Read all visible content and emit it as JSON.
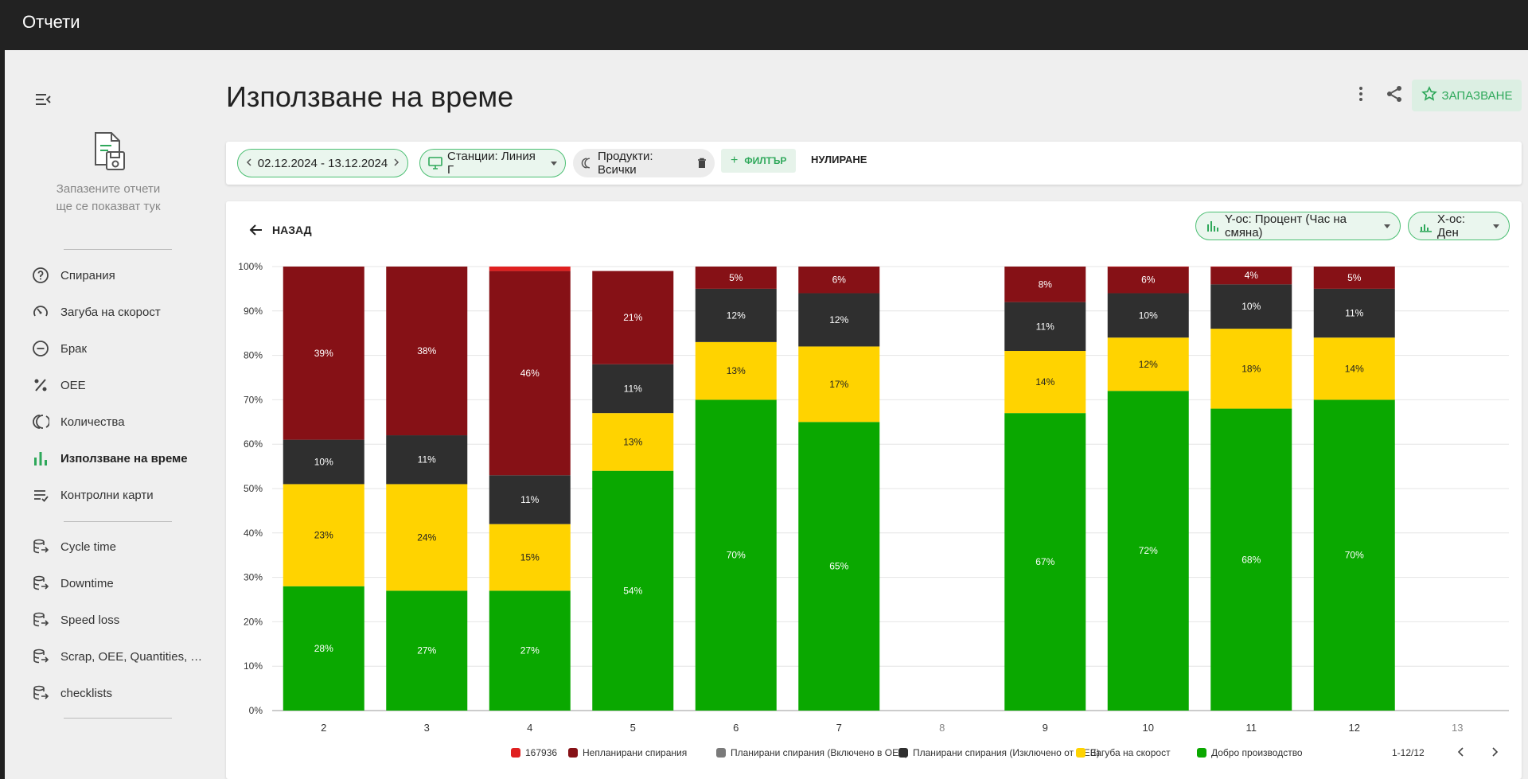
{
  "app": {
    "title": "Отчети"
  },
  "sidebar": {
    "saved_text_line1": "Запазените отчети",
    "saved_text_line2": "ще се показват тук",
    "items": [
      {
        "label": "Спирания",
        "icon": "question-circle-icon"
      },
      {
        "label": "Загуба на скорост",
        "icon": "speed-gauge-icon"
      },
      {
        "label": "Брак",
        "icon": "minus-circle-icon"
      },
      {
        "label": "OEE",
        "icon": "percent-icon"
      },
      {
        "label": "Количества",
        "icon": "quantity-rings-icon"
      },
      {
        "label": "Използване на време",
        "icon": "bar-chart-icon",
        "active": true
      },
      {
        "label": "Контролни карти",
        "icon": "checklist-icon"
      },
      {
        "label": "Cycle time",
        "icon": "database-export-icon"
      },
      {
        "label": "Downtime",
        "icon": "database-export-icon"
      },
      {
        "label": "Speed loss",
        "icon": "database-export-icon"
      },
      {
        "label": "Scrap, OEE, Quantities, Ti...",
        "icon": "database-export-icon"
      },
      {
        "label": "checklists",
        "icon": "database-export-icon"
      }
    ]
  },
  "header": {
    "title": "Използване на време",
    "save_label": "ЗАПАЗВАНЕ"
  },
  "filters": {
    "date_range": "02.12.2024 - 13.12.2024",
    "stations": "Станции: Линия Г",
    "products": "Продукти: Всички",
    "add_filter": "ФИЛТЪР",
    "reset": "НУЛИРАНЕ"
  },
  "panel": {
    "back_label": "НАЗАД",
    "y_axis_chip": "Y-ос: Процент (Час на смяна)",
    "x_axis_chip": "X-ос: Ден",
    "pager": "1-12/12"
  },
  "colors": {
    "accent": "#2ea85a",
    "s167936": "#e02020",
    "unplanned": "#861116",
    "planned_in": "#7a7a7a",
    "planned_out": "#2f2f2f",
    "speed": "#ffd300",
    "good": "#0aa800"
  },
  "chart_data": {
    "type": "bar",
    "stacked": true,
    "categories": [
      "2",
      "3",
      "4",
      "5",
      "6",
      "7",
      "8",
      "9",
      "10",
      "11",
      "12",
      "13"
    ],
    "ylim": [
      0,
      100
    ],
    "yticks": [
      "0%",
      "10%",
      "20%",
      "30%",
      "40%",
      "50%",
      "60%",
      "70%",
      "80%",
      "90%",
      "100%"
    ],
    "grid": true,
    "legend_position": "bottom",
    "series": [
      {
        "name": "Добро производство",
        "color": "#0aa800",
        "values": [
          28,
          27,
          27,
          54,
          70,
          65,
          null,
          67,
          72,
          68,
          70,
          null
        ],
        "labels": [
          "28%",
          "27%",
          "27%",
          "54%",
          "70%",
          "65%",
          "",
          "67%",
          "72%",
          "68%",
          "70%",
          ""
        ]
      },
      {
        "name": "Загуба на скорост",
        "color": "#ffd300",
        "values": [
          23,
          24,
          15,
          13,
          13,
          17,
          null,
          14,
          12,
          18,
          14,
          null
        ],
        "labels": [
          "23%",
          "24%",
          "15%",
          "13%",
          "13%",
          "17%",
          "",
          "14%",
          "12%",
          "18%",
          "14%",
          ""
        ]
      },
      {
        "name": "Планирани спирания (Изключено от OEE)",
        "color": "#2f2f2f",
        "values": [
          10,
          11,
          11,
          11,
          12,
          12,
          null,
          11,
          10,
          10,
          11,
          null
        ],
        "labels": [
          "10%",
          "11%",
          "11%",
          "11%",
          "12%",
          "12%",
          "",
          "11%",
          "10%",
          "10%",
          "11%",
          ""
        ]
      },
      {
        "name": "Планирани спирания (Включено в OEE)",
        "color": "#7a7a7a",
        "values": [
          0,
          0,
          0,
          0,
          0,
          0,
          null,
          0,
          0,
          0,
          0,
          null
        ],
        "labels": [
          "",
          "",
          "",
          "",
          "",
          "",
          "",
          "",
          "",
          "",
          "",
          ""
        ]
      },
      {
        "name": "Непланирани спирания",
        "color": "#861116",
        "values": [
          39,
          38,
          46,
          21,
          5,
          6,
          null,
          8,
          6,
          4,
          5,
          null
        ],
        "labels": [
          "39%",
          "38%",
          "46%",
          "21%",
          "5%",
          "6%",
          "",
          "8%",
          "6%",
          "4%",
          "5%",
          ""
        ]
      },
      {
        "name": "167936",
        "color": "#e02020",
        "values": [
          0,
          0,
          1,
          0,
          0,
          0,
          null,
          0,
          0.4,
          0.5,
          0,
          null
        ],
        "labels": [
          "",
          "",
          "",
          "",
          "",
          "",
          "",
          "",
          "",
          "",
          "",
          ""
        ]
      }
    ],
    "legend_order": [
      "167936",
      "Непланирани спирания",
      "Планирани спирания (Включено в OEE)",
      "Планирани спирания (Изключено от OEE)",
      "Загуба на скорост",
      "Добро производство"
    ]
  }
}
